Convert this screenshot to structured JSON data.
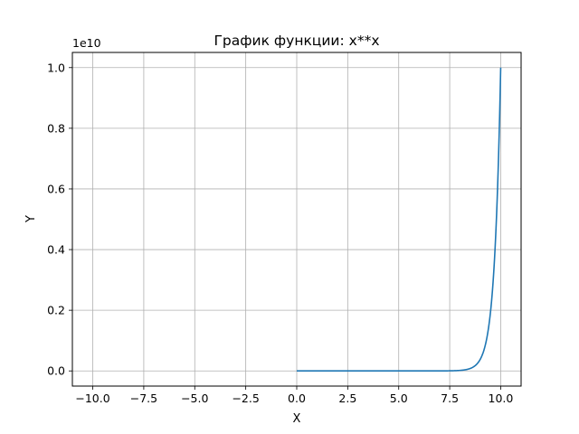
{
  "chart_data": {
    "type": "line",
    "title": "График функции: x**x",
    "xlabel": "X",
    "ylabel": "Y",
    "y_offset_label": "1e10",
    "xlim": [
      -11,
      11
    ],
    "ylim": [
      -0.05,
      1.05
    ],
    "x_ticks": [
      -10,
      -7.5,
      -5,
      -2.5,
      0,
      2.5,
      5,
      7.5,
      10
    ],
    "x_tick_labels": [
      "−10.0",
      "−7.5",
      "−5.0",
      "−2.5",
      "0.0",
      "2.5",
      "5.0",
      "7.5",
      "10.0"
    ],
    "y_ticks": [
      0,
      0.2,
      0.4,
      0.6,
      0.8,
      1.0
    ],
    "y_tick_labels": [
      "0.0",
      "0.2",
      "0.4",
      "0.6",
      "0.8",
      "1.0"
    ],
    "grid": true,
    "series": [
      {
        "function": "x**x",
        "x_range": [
          0,
          10
        ],
        "x": [
          0,
          1,
          2,
          3,
          4,
          5,
          6,
          7,
          8,
          8.5,
          9,
          9.25,
          9.5,
          9.75,
          10
        ],
        "y": [
          0,
          0,
          0,
          0,
          0,
          0,
          0,
          8e-05,
          0.0017,
          0.0079,
          0.0387,
          0.0884,
          0.2041,
          0.4283,
          1.0
        ]
      }
    ],
    "colors": {
      "line": "#1f77b4",
      "grid": "#b0b0b0",
      "axes": "#000000"
    }
  }
}
